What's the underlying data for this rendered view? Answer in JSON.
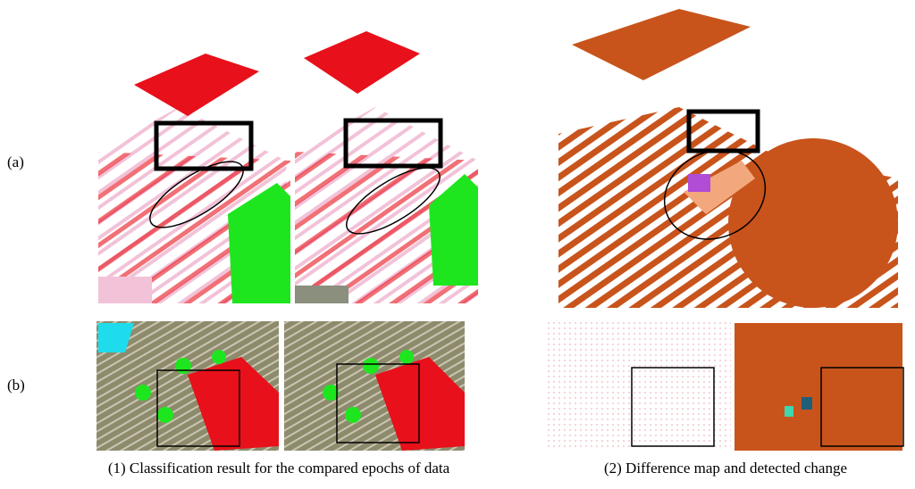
{
  "row_labels": [
    "(a)",
    "(b)"
  ],
  "captions": [
    "(1) Classification result for the compared epochs of data",
    "(2) Difference map and detected change"
  ]
}
